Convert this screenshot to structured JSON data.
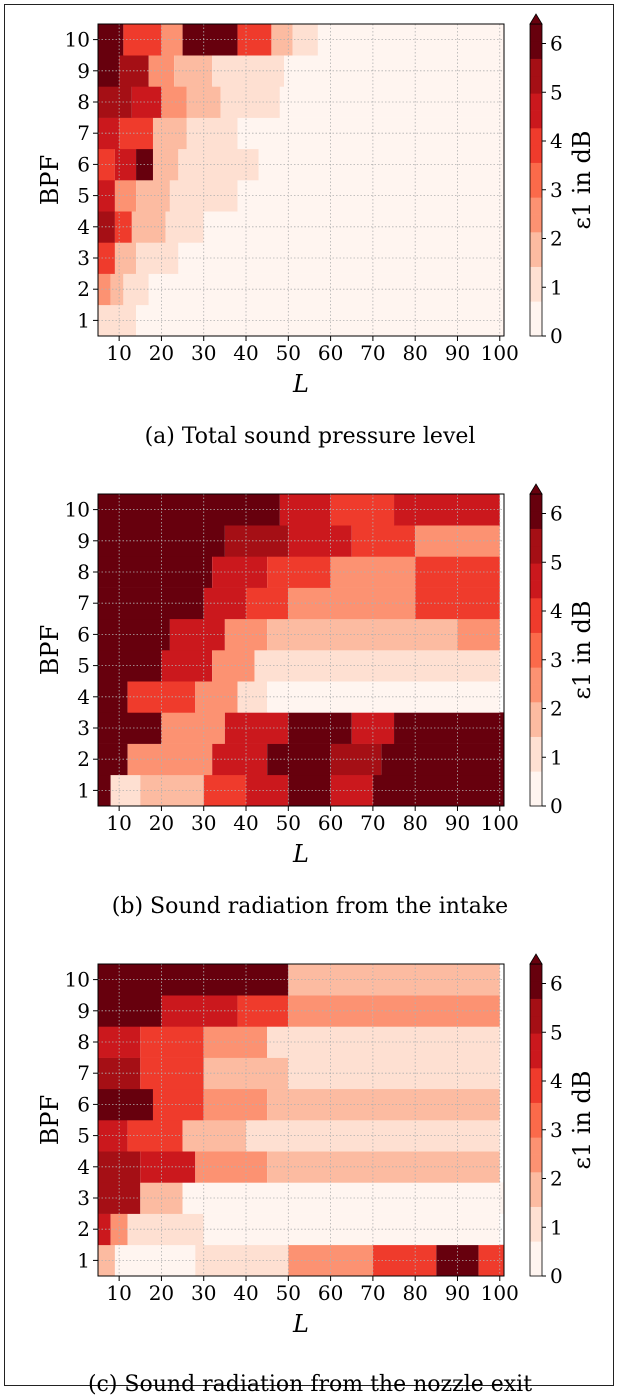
{
  "figure": {
    "colormap": "Reds",
    "color_stops": [
      "#fff5f0",
      "#fee0d2",
      "#fcbba1",
      "#fc9272",
      "#fb6a4a",
      "#ef3b2c",
      "#cb181d",
      "#a50f15",
      "#67000d"
    ]
  },
  "chart_data": [
    {
      "type": "heatmap",
      "caption": "(a) Total sound pressure level",
      "ylabel": "BPF",
      "xlabel": "L",
      "colorbar_label": "ε1 in dB",
      "colorbar_ticks": [
        "0",
        "1",
        "2",
        "3",
        "4",
        "5",
        "6"
      ],
      "colorbar_range": [
        0,
        6.4
      ],
      "colorbar_extend": "max",
      "xlim": [
        5,
        101
      ],
      "x_ticks": [
        "10",
        "20",
        "30",
        "40",
        "50",
        "60",
        "70",
        "80",
        "90",
        "100"
      ],
      "y_ticks": [
        "1",
        "2",
        "3",
        "4",
        "5",
        "6",
        "7",
        "8",
        "9",
        "10"
      ],
      "grid": true,
      "rows": [
        {
          "bpf": 1,
          "segments": [
            [
              5,
              14,
              0.9
            ],
            [
              14,
              101,
              0
            ]
          ]
        },
        {
          "bpf": 2,
          "segments": [
            [
              5,
              8,
              2.6
            ],
            [
              8,
              11,
              1.8
            ],
            [
              11,
              17,
              0.9
            ],
            [
              17,
              101,
              0
            ]
          ]
        },
        {
          "bpf": 3,
          "segments": [
            [
              5,
              9,
              3.6
            ],
            [
              9,
              14,
              1.8
            ],
            [
              14,
              24,
              0.9
            ],
            [
              24,
              101,
              0
            ]
          ]
        },
        {
          "bpf": 4,
          "segments": [
            [
              5,
              9,
              5.3
            ],
            [
              9,
              13,
              3.6
            ],
            [
              13,
              21,
              1.8
            ],
            [
              21,
              30,
              0.9
            ],
            [
              30,
              101,
              0
            ]
          ]
        },
        {
          "bpf": 5,
          "segments": [
            [
              5,
              9,
              4.4
            ],
            [
              9,
              14,
              2.6
            ],
            [
              14,
              22,
              1.8
            ],
            [
              22,
              38,
              0.9
            ],
            [
              38,
              101,
              0
            ]
          ]
        },
        {
          "bpf": 6,
          "segments": [
            [
              5,
              9,
              3.6
            ],
            [
              9,
              14,
              4.4
            ],
            [
              14,
              18,
              6.3
            ],
            [
              18,
              24,
              1.8
            ],
            [
              24,
              43,
              0.9
            ],
            [
              43,
              101,
              0
            ]
          ]
        },
        {
          "bpf": 7,
          "segments": [
            [
              5,
              10,
              4.4
            ],
            [
              10,
              18,
              3.6
            ],
            [
              18,
              26,
              1.8
            ],
            [
              26,
              38,
              0.9
            ],
            [
              38,
              51,
              0.4
            ],
            [
              51,
              101,
              0
            ]
          ]
        },
        {
          "bpf": 8,
          "segments": [
            [
              5,
              13,
              5.3
            ],
            [
              13,
              20,
              4.4
            ],
            [
              20,
              26,
              2.6
            ],
            [
              26,
              34,
              1.8
            ],
            [
              34,
              48,
              0.9
            ],
            [
              48,
              101,
              0
            ]
          ]
        },
        {
          "bpf": 9,
          "segments": [
            [
              5,
              10,
              6.3
            ],
            [
              10,
              17,
              5.3
            ],
            [
              17,
              23,
              2.6
            ],
            [
              23,
              32,
              1.8
            ],
            [
              32,
              49,
              0.9
            ],
            [
              49,
              101,
              0
            ]
          ]
        },
        {
          "bpf": 10,
          "segments": [
            [
              5,
              11,
              6.3
            ],
            [
              11,
              20,
              3.6
            ],
            [
              20,
              25,
              2.6
            ],
            [
              25,
              38,
              6.3
            ],
            [
              38,
              46,
              3.6
            ],
            [
              46,
              51,
              1.8
            ],
            [
              51,
              57,
              0.9
            ],
            [
              57,
              101,
              0
            ]
          ]
        }
      ]
    },
    {
      "type": "heatmap",
      "caption": "(b) Sound radiation from the intake",
      "ylabel": "BPF",
      "xlabel": "L",
      "colorbar_label": "ε1 in dB",
      "colorbar_ticks": [
        "0",
        "1",
        "2",
        "3",
        "4",
        "5",
        "6"
      ],
      "colorbar_range": [
        0,
        6.4
      ],
      "colorbar_extend": "max",
      "xlim": [
        5,
        101
      ],
      "x_ticks": [
        "10",
        "20",
        "30",
        "40",
        "50",
        "60",
        "70",
        "80",
        "90",
        "100"
      ],
      "y_ticks": [
        "1",
        "2",
        "3",
        "4",
        "5",
        "6",
        "7",
        "8",
        "9",
        "10"
      ],
      "grid": true,
      "rows": [
        {
          "bpf": 1,
          "segments": [
            [
              5,
              8,
              6.3
            ],
            [
              8,
              15,
              0.9
            ],
            [
              15,
              30,
              1.8
            ],
            [
              30,
              40,
              3.6
            ],
            [
              40,
              50,
              4.4
            ],
            [
              50,
              60,
              6.3
            ],
            [
              60,
              70,
              4.4
            ],
            [
              70,
              101,
              6.3
            ]
          ]
        },
        {
          "bpf": 2,
          "segments": [
            [
              5,
              12,
              6.3
            ],
            [
              12,
              32,
              2.6
            ],
            [
              32,
              45,
              4.4
            ],
            [
              45,
              60,
              6.3
            ],
            [
              60,
              72,
              5.3
            ],
            [
              72,
              101,
              6.3
            ]
          ]
        },
        {
          "bpf": 3,
          "segments": [
            [
              5,
              20,
              6.3
            ],
            [
              20,
              35,
              2.6
            ],
            [
              35,
              50,
              4.4
            ],
            [
              50,
              65,
              6.3
            ],
            [
              65,
              75,
              4.4
            ],
            [
              75,
              101,
              6.3
            ]
          ]
        },
        {
          "bpf": 4,
          "segments": [
            [
              5,
              12,
              6.3
            ],
            [
              12,
              28,
              3.6
            ],
            [
              28,
              38,
              2.6
            ],
            [
              38,
              45,
              0.9
            ],
            [
              45,
              100,
              0.4
            ]
          ]
        },
        {
          "bpf": 5,
          "segments": [
            [
              5,
              20,
              6.3
            ],
            [
              20,
              32,
              4.4
            ],
            [
              32,
              42,
              2.6
            ],
            [
              42,
              100,
              0.9
            ]
          ]
        },
        {
          "bpf": 6,
          "segments": [
            [
              5,
              22,
              6.3
            ],
            [
              22,
              35,
              4.4
            ],
            [
              35,
              45,
              2.6
            ],
            [
              45,
              70,
              1.8
            ],
            [
              70,
              90,
              1.8
            ],
            [
              90,
              100,
              2.6
            ]
          ]
        },
        {
          "bpf": 7,
          "segments": [
            [
              5,
              30,
              6.3
            ],
            [
              30,
              40,
              4.4
            ],
            [
              40,
              50,
              3.6
            ],
            [
              50,
              80,
              2.6
            ],
            [
              80,
              100,
              3.6
            ]
          ]
        },
        {
          "bpf": 8,
          "segments": [
            [
              5,
              32,
              6.3
            ],
            [
              32,
              45,
              4.4
            ],
            [
              45,
              60,
              3.6
            ],
            [
              60,
              80,
              2.6
            ],
            [
              80,
              100,
              3.6
            ]
          ]
        },
        {
          "bpf": 9,
          "segments": [
            [
              5,
              35,
              6.3
            ],
            [
              35,
              50,
              5.3
            ],
            [
              50,
              65,
              4.4
            ],
            [
              65,
              80,
              3.6
            ],
            [
              80,
              100,
              2.6
            ]
          ]
        },
        {
          "bpf": 10,
          "segments": [
            [
              5,
              48,
              6.3
            ],
            [
              48,
              60,
              4.4
            ],
            [
              60,
              75,
              3.6
            ],
            [
              75,
              100,
              4.4
            ]
          ]
        }
      ]
    },
    {
      "type": "heatmap",
      "caption": "(c) Sound radiation from the nozzle exit",
      "ylabel": "BPF",
      "xlabel": "L",
      "colorbar_label": "ε1 in dB",
      "colorbar_ticks": [
        "0",
        "1",
        "2",
        "3",
        "4",
        "5",
        "6"
      ],
      "colorbar_range": [
        0,
        6.4
      ],
      "colorbar_extend": "max",
      "xlim": [
        5,
        101
      ],
      "x_ticks": [
        "10",
        "20",
        "30",
        "40",
        "50",
        "60",
        "70",
        "80",
        "90",
        "100"
      ],
      "y_ticks": [
        "1",
        "2",
        "3",
        "4",
        "5",
        "6",
        "7",
        "8",
        "9",
        "10"
      ],
      "grid": true,
      "rows": [
        {
          "bpf": 1,
          "segments": [
            [
              5,
              9,
              1.8
            ],
            [
              9,
              28,
              0
            ],
            [
              28,
              50,
              0.9
            ],
            [
              50,
              70,
              2.6
            ],
            [
              70,
              85,
              3.6
            ],
            [
              85,
              95,
              6.3
            ],
            [
              95,
              101,
              3.6
            ]
          ]
        },
        {
          "bpf": 2,
          "segments": [
            [
              5,
              8,
              4.4
            ],
            [
              8,
              12,
              2.6
            ],
            [
              12,
              30,
              0.9
            ],
            [
              30,
              100,
              0.4
            ]
          ]
        },
        {
          "bpf": 3,
          "segments": [
            [
              5,
              15,
              5.3
            ],
            [
              15,
              25,
              1.8
            ],
            [
              25,
              101,
              0.4
            ]
          ]
        },
        {
          "bpf": 4,
          "segments": [
            [
              5,
              15,
              5.3
            ],
            [
              15,
              28,
              4.4
            ],
            [
              28,
              45,
              2.6
            ],
            [
              45,
              100,
              1.8
            ]
          ]
        },
        {
          "bpf": 5,
          "segments": [
            [
              5,
              12,
              4.4
            ],
            [
              12,
              25,
              3.6
            ],
            [
              25,
              40,
              1.8
            ],
            [
              40,
              100,
              0.9
            ]
          ]
        },
        {
          "bpf": 6,
          "segments": [
            [
              5,
              18,
              6.3
            ],
            [
              18,
              30,
              3.6
            ],
            [
              30,
              45,
              2.6
            ],
            [
              45,
              100,
              1.8
            ]
          ]
        },
        {
          "bpf": 7,
          "segments": [
            [
              5,
              15,
              5.3
            ],
            [
              15,
              30,
              3.6
            ],
            [
              30,
              50,
              1.8
            ],
            [
              50,
              100,
              0.9
            ]
          ]
        },
        {
          "bpf": 8,
          "segments": [
            [
              5,
              15,
              4.4
            ],
            [
              15,
              30,
              3.6
            ],
            [
              30,
              45,
              2.6
            ],
            [
              45,
              100,
              0.9
            ]
          ]
        },
        {
          "bpf": 9,
          "segments": [
            [
              5,
              20,
              6.3
            ],
            [
              20,
              38,
              4.4
            ],
            [
              38,
              50,
              3.6
            ],
            [
              50,
              70,
              2.6
            ],
            [
              70,
              100,
              2.6
            ]
          ]
        },
        {
          "bpf": 10,
          "segments": [
            [
              5,
              50,
              6.3
            ],
            [
              50,
              70,
              1.8
            ],
            [
              70,
              100,
              1.8
            ]
          ]
        }
      ]
    }
  ]
}
